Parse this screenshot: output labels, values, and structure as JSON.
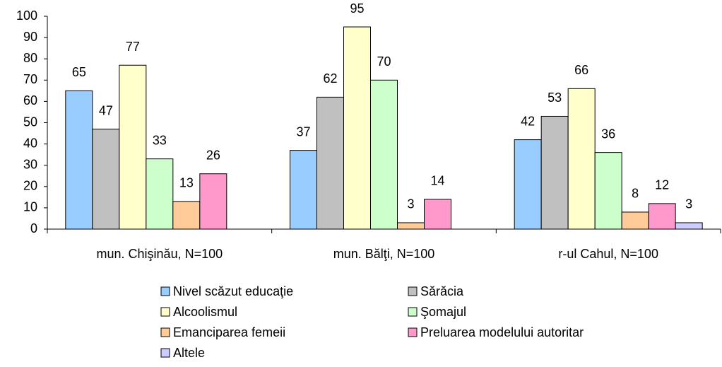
{
  "chart_data": {
    "type": "bar",
    "categories": [
      "mun. Chişinău, N=100",
      "mun. Bălţi, N=100",
      "r-ul Cahul, N=100"
    ],
    "series": [
      {
        "name": "Nivel scăzut educaţie",
        "color": "#99ccff",
        "values": [
          65,
          37,
          42
        ]
      },
      {
        "name": "Sărăcia",
        "color": "#c0c0c0",
        "values": [
          47,
          62,
          53
        ]
      },
      {
        "name": "Alcoolismul",
        "color": "#ffffcc",
        "values": [
          77,
          95,
          66
        ]
      },
      {
        "name": "Şomajul",
        "color": "#ccffcc",
        "values": [
          33,
          70,
          36
        ]
      },
      {
        "name": "Emanciparea femeii",
        "color": "#ffcc99",
        "values": [
          13,
          3,
          8
        ]
      },
      {
        "name": "Preluarea modelului autoritar",
        "color": "#ff99cc",
        "values": [
          26,
          14,
          12
        ]
      },
      {
        "name": "Altele",
        "color": "#ccccff",
        "values": [
          null,
          null,
          3
        ]
      }
    ],
    "ylim": [
      0,
      100
    ],
    "yticks": [
      0,
      10,
      20,
      30,
      40,
      50,
      60,
      70,
      80,
      90,
      100
    ]
  }
}
